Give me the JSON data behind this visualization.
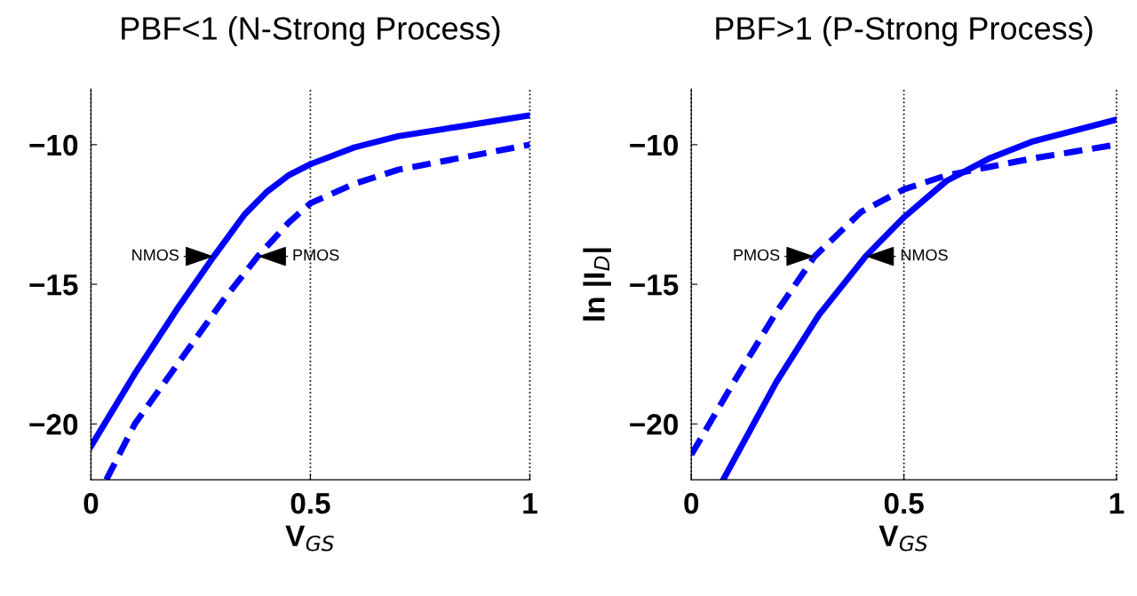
{
  "chart_data": [
    {
      "type": "line",
      "title": "PBF<1 (N-Strong Process)",
      "xlabel": "V$_{GS}$",
      "xlim": [
        0,
        1
      ],
      "ylim": [
        -22,
        -8
      ],
      "xticks": [
        0,
        0.5,
        1
      ],
      "yticks": [
        -10,
        -15,
        -20
      ],
      "grid": "x",
      "legend": false,
      "marker": "none",
      "series": [
        {
          "color": "#0000ff",
          "line_style": "solid",
          "x": [
            0,
            0.1,
            0.2,
            0.28,
            0.35,
            0.4,
            0.45,
            0.5,
            0.6,
            0.7,
            0.8,
            0.9,
            1.0
          ],
          "values": [
            -20.8,
            -18.2,
            -15.8,
            -14.0,
            -12.5,
            -11.7,
            -11.1,
            -10.7,
            -10.1,
            -9.7,
            -9.45,
            -9.2,
            -8.95
          ]
        },
        {
          "color": "#0000ff",
          "line_style": "dashed",
          "x": [
            0.035,
            0.1,
            0.2,
            0.3,
            0.38,
            0.45,
            0.5,
            0.6,
            0.7,
            0.8,
            0.9,
            1.0
          ],
          "values": [
            -22,
            -20.0,
            -17.8,
            -15.6,
            -14.0,
            -12.8,
            -12.1,
            -11.4,
            -10.9,
            -10.6,
            -10.3,
            -10.0
          ]
        }
      ],
      "annotations": [
        {
          "text": "NMOS",
          "x": 0.28,
          "y": -14.0
        },
        {
          "text": "PMOS",
          "x": 0.38,
          "y": -14.0
        }
      ]
    },
    {
      "type": "line",
      "title": "PBF>1 (P-Strong Process)",
      "xlabel": "V$_{GS}$",
      "ylabel": "ln |I$_{D}$|",
      "xlim": [
        0,
        1
      ],
      "ylim": [
        -22,
        -8
      ],
      "xticks": [
        0,
        0.5,
        1
      ],
      "yticks": [
        -10,
        -15,
        -20
      ],
      "grid": "x",
      "legend": false,
      "marker": "none",
      "series": [
        {
          "color": "#0000ff",
          "line_style": "solid",
          "x": [
            0.075,
            0.1,
            0.2,
            0.3,
            0.41,
            0.5,
            0.6,
            0.7,
            0.8,
            0.9,
            1.0
          ],
          "values": [
            -22,
            -21.3,
            -18.5,
            -16.1,
            -14.0,
            -12.6,
            -11.3,
            -10.5,
            -9.9,
            -9.5,
            -9.1
          ]
        },
        {
          "color": "#0000ff",
          "line_style": "dashed",
          "x": [
            0,
            0.1,
            0.2,
            0.29,
            0.4,
            0.5,
            0.6,
            0.7,
            0.8,
            0.9,
            1.0
          ],
          "values": [
            -21.1,
            -18.5,
            -16.0,
            -14.0,
            -12.4,
            -11.6,
            -11.1,
            -10.8,
            -10.5,
            -10.25,
            -10.0
          ]
        }
      ],
      "annotations": [
        {
          "text": "PMOS",
          "x": 0.29,
          "y": -14.0
        },
        {
          "text": "NMOS",
          "x": 0.41,
          "y": -14.0
        }
      ]
    }
  ]
}
